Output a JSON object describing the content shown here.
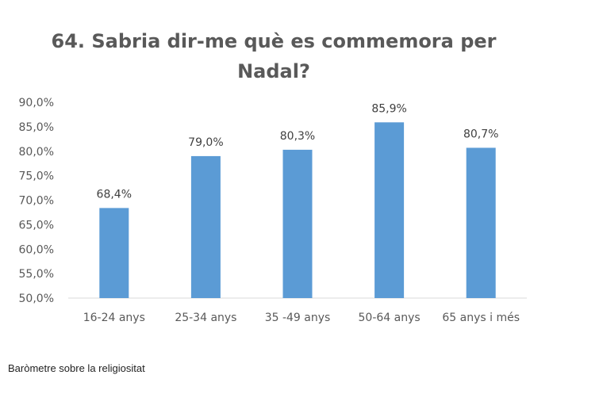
{
  "chart_data": {
    "type": "bar",
    "title_lines": [
      "64. Sabria dir-me què es commemora per",
      "Nadal?"
    ],
    "categories": [
      "16-24 anys",
      "25-34 anys",
      "35 -49 anys",
      "50-64 anys",
      "65 anys i més"
    ],
    "values": [
      68.4,
      79.0,
      80.3,
      85.9,
      80.7
    ],
    "data_labels": [
      "68,4%",
      "79,0%",
      "80,3%",
      "85,9%",
      "80,7%"
    ],
    "ylim": [
      50,
      90
    ],
    "yticks": [
      50,
      55,
      60,
      65,
      70,
      75,
      80,
      85,
      90
    ],
    "ytick_labels": [
      "50,0%",
      "55,0%",
      "60,0%",
      "65,0%",
      "70,0%",
      "75,0%",
      "80,0%",
      "85,0%",
      "90,0%"
    ],
    "xlabel": "",
    "ylabel": "",
    "grid": false,
    "legend": "none",
    "bar_color": "#5B9BD5"
  },
  "footer": {
    "source": "Baròmetre sobre la religiositat"
  }
}
